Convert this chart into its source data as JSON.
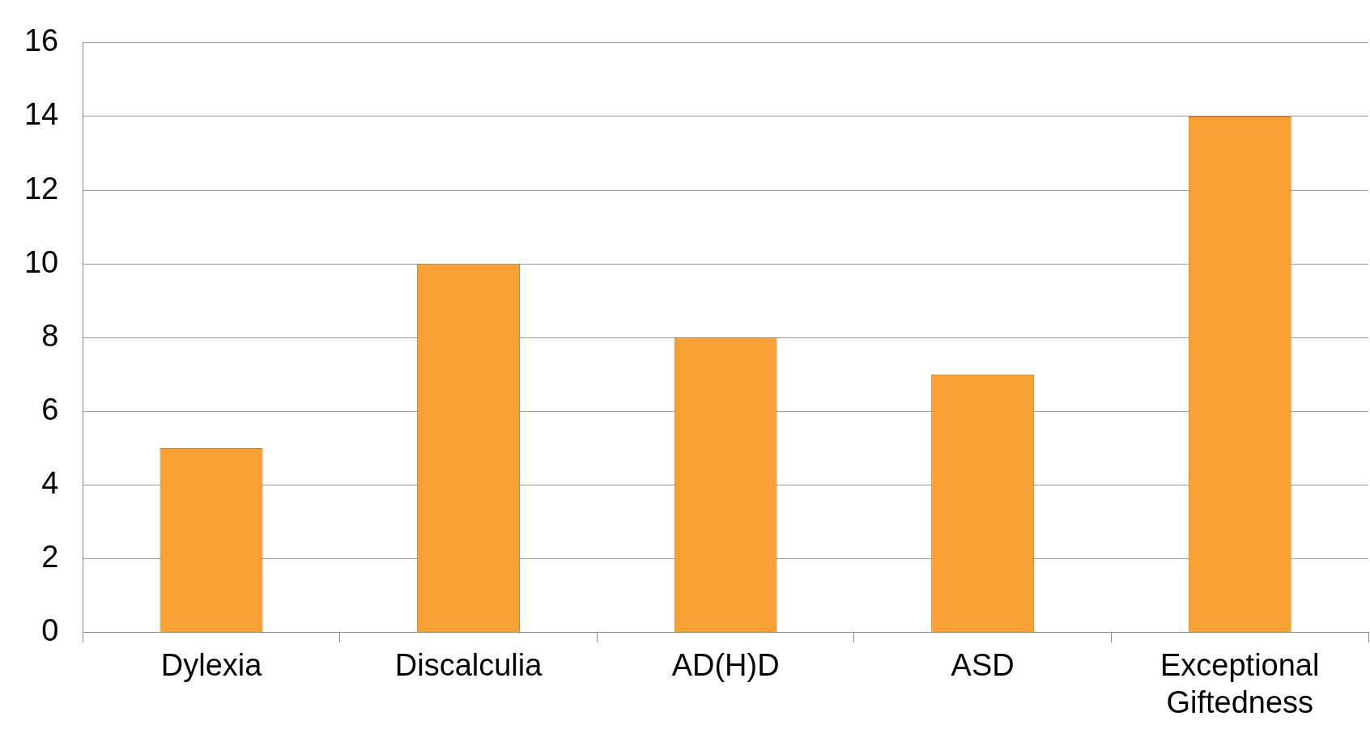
{
  "chart_data": {
    "type": "bar",
    "categories": [
      "Dylexia",
      "Discalculia",
      "AD(H)D",
      "ASD",
      "Exceptional Giftedness"
    ],
    "values": [
      5,
      10,
      8,
      7,
      14
    ],
    "color": "#f6a033",
    "ylim": [
      0,
      16
    ],
    "yticks": [
      0,
      2,
      4,
      6,
      8,
      10,
      12,
      14,
      16
    ],
    "grid": "y"
  }
}
